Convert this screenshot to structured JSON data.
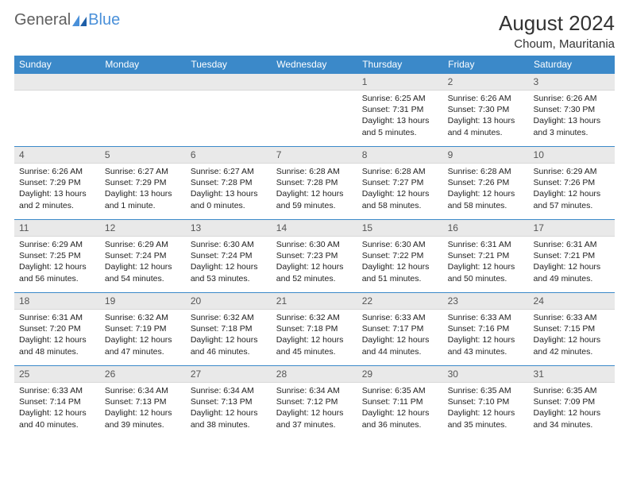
{
  "logo": {
    "part1": "General",
    "part2": "Blue"
  },
  "title": "August 2024",
  "location": "Choum, Mauritania",
  "colors": {
    "header_bg": "#3b89c9",
    "header_text": "#ffffff",
    "daynum_bg": "#e9e9e9",
    "border": "#3b89c9",
    "logo_gray": "#5f5f5f",
    "logo_blue": "#4a90d9",
    "text": "#222222"
  },
  "dayHeaders": [
    "Sunday",
    "Monday",
    "Tuesday",
    "Wednesday",
    "Thursday",
    "Friday",
    "Saturday"
  ],
  "weeks": [
    [
      null,
      null,
      null,
      null,
      {
        "n": "1",
        "sunrise": "6:25 AM",
        "sunset": "7:31 PM",
        "daylight": "13 hours and 5 minutes."
      },
      {
        "n": "2",
        "sunrise": "6:26 AM",
        "sunset": "7:30 PM",
        "daylight": "13 hours and 4 minutes."
      },
      {
        "n": "3",
        "sunrise": "6:26 AM",
        "sunset": "7:30 PM",
        "daylight": "13 hours and 3 minutes."
      }
    ],
    [
      {
        "n": "4",
        "sunrise": "6:26 AM",
        "sunset": "7:29 PM",
        "daylight": "13 hours and 2 minutes."
      },
      {
        "n": "5",
        "sunrise": "6:27 AM",
        "sunset": "7:29 PM",
        "daylight": "13 hours and 1 minute."
      },
      {
        "n": "6",
        "sunrise": "6:27 AM",
        "sunset": "7:28 PM",
        "daylight": "13 hours and 0 minutes."
      },
      {
        "n": "7",
        "sunrise": "6:28 AM",
        "sunset": "7:28 PM",
        "daylight": "12 hours and 59 minutes."
      },
      {
        "n": "8",
        "sunrise": "6:28 AM",
        "sunset": "7:27 PM",
        "daylight": "12 hours and 58 minutes."
      },
      {
        "n": "9",
        "sunrise": "6:28 AM",
        "sunset": "7:26 PM",
        "daylight": "12 hours and 58 minutes."
      },
      {
        "n": "10",
        "sunrise": "6:29 AM",
        "sunset": "7:26 PM",
        "daylight": "12 hours and 57 minutes."
      }
    ],
    [
      {
        "n": "11",
        "sunrise": "6:29 AM",
        "sunset": "7:25 PM",
        "daylight": "12 hours and 56 minutes."
      },
      {
        "n": "12",
        "sunrise": "6:29 AM",
        "sunset": "7:24 PM",
        "daylight": "12 hours and 54 minutes."
      },
      {
        "n": "13",
        "sunrise": "6:30 AM",
        "sunset": "7:24 PM",
        "daylight": "12 hours and 53 minutes."
      },
      {
        "n": "14",
        "sunrise": "6:30 AM",
        "sunset": "7:23 PM",
        "daylight": "12 hours and 52 minutes."
      },
      {
        "n": "15",
        "sunrise": "6:30 AM",
        "sunset": "7:22 PM",
        "daylight": "12 hours and 51 minutes."
      },
      {
        "n": "16",
        "sunrise": "6:31 AM",
        "sunset": "7:21 PM",
        "daylight": "12 hours and 50 minutes."
      },
      {
        "n": "17",
        "sunrise": "6:31 AM",
        "sunset": "7:21 PM",
        "daylight": "12 hours and 49 minutes."
      }
    ],
    [
      {
        "n": "18",
        "sunrise": "6:31 AM",
        "sunset": "7:20 PM",
        "daylight": "12 hours and 48 minutes."
      },
      {
        "n": "19",
        "sunrise": "6:32 AM",
        "sunset": "7:19 PM",
        "daylight": "12 hours and 47 minutes."
      },
      {
        "n": "20",
        "sunrise": "6:32 AM",
        "sunset": "7:18 PM",
        "daylight": "12 hours and 46 minutes."
      },
      {
        "n": "21",
        "sunrise": "6:32 AM",
        "sunset": "7:18 PM",
        "daylight": "12 hours and 45 minutes."
      },
      {
        "n": "22",
        "sunrise": "6:33 AM",
        "sunset": "7:17 PM",
        "daylight": "12 hours and 44 minutes."
      },
      {
        "n": "23",
        "sunrise": "6:33 AM",
        "sunset": "7:16 PM",
        "daylight": "12 hours and 43 minutes."
      },
      {
        "n": "24",
        "sunrise": "6:33 AM",
        "sunset": "7:15 PM",
        "daylight": "12 hours and 42 minutes."
      }
    ],
    [
      {
        "n": "25",
        "sunrise": "6:33 AM",
        "sunset": "7:14 PM",
        "daylight": "12 hours and 40 minutes."
      },
      {
        "n": "26",
        "sunrise": "6:34 AM",
        "sunset": "7:13 PM",
        "daylight": "12 hours and 39 minutes."
      },
      {
        "n": "27",
        "sunrise": "6:34 AM",
        "sunset": "7:13 PM",
        "daylight": "12 hours and 38 minutes."
      },
      {
        "n": "28",
        "sunrise": "6:34 AM",
        "sunset": "7:12 PM",
        "daylight": "12 hours and 37 minutes."
      },
      {
        "n": "29",
        "sunrise": "6:35 AM",
        "sunset": "7:11 PM",
        "daylight": "12 hours and 36 minutes."
      },
      {
        "n": "30",
        "sunrise": "6:35 AM",
        "sunset": "7:10 PM",
        "daylight": "12 hours and 35 minutes."
      },
      {
        "n": "31",
        "sunrise": "6:35 AM",
        "sunset": "7:09 PM",
        "daylight": "12 hours and 34 minutes."
      }
    ]
  ],
  "labels": {
    "sunrise": "Sunrise: ",
    "sunset": "Sunset: ",
    "daylight": "Daylight: "
  }
}
